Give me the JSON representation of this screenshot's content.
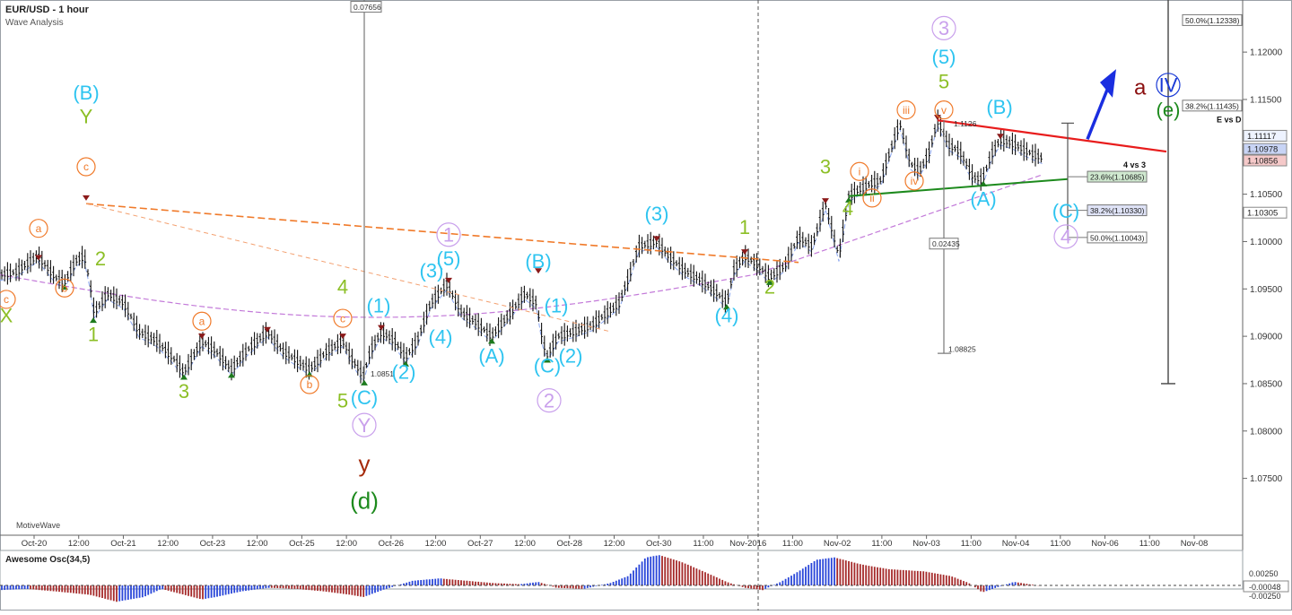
{
  "chart_data": {
    "type": "line",
    "title": "EUR/USD - 1 hour",
    "subtitle": "Wave Analysis",
    "brand": "MotiveWave",
    "ylim": [
      1.069,
      1.1255
    ],
    "y_ticks": [
      1.075,
      1.08,
      1.085,
      1.09,
      1.095,
      1.1,
      1.105,
      1.11,
      1.115,
      1.12
    ],
    "y_tick_labels": [
      "1.07500",
      "1.08000",
      "1.08500",
      "1.09000",
      "1.09500",
      "1.10000",
      "1.10500",
      "1.11000",
      "1.11500",
      "1.12000"
    ],
    "x_tick_labels": [
      "Oct-20",
      "12:00",
      "Oct-21",
      "12:00",
      "Oct-23",
      "12:00",
      "Oct-25",
      "12:00",
      "Oct-26",
      "12:00",
      "Oct-27",
      "12:00",
      "Oct-28",
      "12:00",
      "Oct-30",
      "11:00",
      "Nov-2016",
      "11:00",
      "Nov-02",
      "11:00",
      "Nov-03",
      "11:00",
      "Nov-04",
      "11:00",
      "Nov-06",
      "11:00",
      "Nov-08"
    ],
    "price_path": [
      [
        0,
        1.0965
      ],
      [
        18,
        1.0968
      ],
      [
        42,
        1.0985
      ],
      [
        62,
        1.0962
      ],
      [
        72,
        1.0957
      ],
      [
        85,
        1.098
      ],
      [
        94,
        1.0985
      ],
      [
        100,
        1.0958
      ],
      [
        105,
        1.0925
      ],
      [
        120,
        1.0945
      ],
      [
        138,
        1.0935
      ],
      [
        155,
        1.0905
      ],
      [
        175,
        1.0895
      ],
      [
        195,
        1.0875
      ],
      [
        205,
        1.0862
      ],
      [
        213,
        1.0875
      ],
      [
        225,
        1.0895
      ],
      [
        240,
        1.0885
      ],
      [
        258,
        1.0865
      ],
      [
        275,
        1.0885
      ],
      [
        298,
        1.0905
      ],
      [
        315,
        1.0885
      ],
      [
        330,
        1.0875
      ],
      [
        345,
        1.0865
      ],
      [
        365,
        1.0885
      ],
      [
        382,
        1.0895
      ],
      [
        393,
        1.0875
      ],
      [
        405,
        1.0858
      ],
      [
        413,
        1.0885
      ],
      [
        425,
        1.0905
      ],
      [
        440,
        1.0895
      ],
      [
        452,
        1.0878
      ],
      [
        465,
        1.0895
      ],
      [
        480,
        1.0935
      ],
      [
        498,
        1.0955
      ],
      [
        515,
        1.0925
      ],
      [
        530,
        1.0915
      ],
      [
        548,
        1.09
      ],
      [
        565,
        1.092
      ],
      [
        585,
        1.0945
      ],
      [
        598,
        1.0935
      ],
      [
        605,
        1.0895
      ],
      [
        610,
        1.088
      ],
      [
        622,
        1.09
      ],
      [
        640,
        1.0905
      ],
      [
        660,
        1.0912
      ],
      [
        690,
        1.0935
      ],
      [
        700,
        1.096
      ],
      [
        712,
        1.0995
      ],
      [
        732,
        1.1
      ],
      [
        745,
        1.0985
      ],
      [
        762,
        1.097
      ],
      [
        780,
        1.096
      ],
      [
        800,
        1.0945
      ],
      [
        810,
        1.0935
      ],
      [
        818,
        1.097
      ],
      [
        830,
        1.0985
      ],
      [
        845,
        1.0975
      ],
      [
        858,
        1.0962
      ],
      [
        875,
        1.0975
      ],
      [
        890,
        1.1005
      ],
      [
        905,
        1.0995
      ],
      [
        920,
        1.104
      ],
      [
        935,
        1.0985
      ],
      [
        946,
        1.1048
      ],
      [
        958,
        1.1055
      ],
      [
        968,
        1.106
      ],
      [
        982,
        1.1065
      ],
      [
        992,
        1.1095
      ],
      [
        1003,
        1.1125
      ],
      [
        1015,
        1.1082
      ],
      [
        1025,
        1.1075
      ],
      [
        1035,
        1.1092
      ],
      [
        1045,
        1.1128
      ],
      [
        1058,
        1.1102
      ],
      [
        1070,
        1.1095
      ],
      [
        1085,
        1.1068
      ],
      [
        1095,
        1.1065
      ],
      [
        1105,
        1.1092
      ],
      [
        1115,
        1.1108
      ],
      [
        1130,
        1.1103
      ],
      [
        1145,
        1.1095
      ],
      [
        1162,
        1.1088
      ]
    ],
    "indicator_labels": [
      "1.10685",
      "1.10330",
      "1.10043",
      "1.11435",
      "1.12338"
    ],
    "boxes": [
      "0.07656",
      "0.02435",
      "1.08825",
      "1.0851",
      "1.1126"
    ],
    "fib_labels": [
      "23.6%(1.10685)",
      "38.2%(1.10330)",
      "50.0%(1.10043)",
      "38.2%(1.11435)",
      "50.0%(1.12338)"
    ],
    "right_badges": [
      "1.11117",
      "1.10978",
      "1.10856",
      "1.10305"
    ],
    "notes": [
      "4 vs 3",
      "E vs D"
    ],
    "big_letters": [
      "a"
    ],
    "wave_labels": [
      {
        "t": "(B)",
        "x": 96,
        "y": 1.115,
        "c": "#2ec4f0"
      },
      {
        "t": "Y",
        "x": 96,
        "y": 1.1125,
        "c": "#8cbf26"
      },
      {
        "t": "c",
        "x": 96,
        "y": 1.1075,
        "c": "#f07a2a",
        "circle": true
      },
      {
        "t": "a",
        "x": 43,
        "y": 1.101,
        "c": "#f07a2a",
        "circle": true
      },
      {
        "t": "b",
        "x": 72,
        "y": 1.0947,
        "c": "#f07a2a",
        "circle": true
      },
      {
        "t": "c",
        "x": 7,
        "y": 1.0935,
        "c": "#f07a2a",
        "circle": true
      },
      {
        "t": "X",
        "x": 7,
        "y": 1.0915,
        "c": "#8cbf26"
      },
      {
        "t": "2",
        "x": 112,
        "y": 1.0975,
        "c": "#8cbf26"
      },
      {
        "t": "1",
        "x": 104,
        "y": 1.0895,
        "c": "#8cbf26"
      },
      {
        "t": "3",
        "x": 205,
        "y": 1.0835,
        "c": "#8cbf26"
      },
      {
        "t": "a",
        "x": 225,
        "y": 1.0912,
        "c": "#f07a2a",
        "circle": true
      },
      {
        "t": "b",
        "x": 345,
        "y": 1.0845,
        "c": "#f07a2a",
        "circle": true
      },
      {
        "t": "c",
        "x": 382,
        "y": 1.0915,
        "c": "#f07a2a",
        "circle": true
      },
      {
        "t": "4",
        "x": 382,
        "y": 1.0945,
        "c": "#8cbf26"
      },
      {
        "t": "5",
        "x": 382,
        "y": 1.0825,
        "c": "#8cbf26"
      },
      {
        "t": "(C)",
        "x": 406,
        "y": 1.0828,
        "c": "#2ec4f0"
      },
      {
        "t": "Y",
        "x": 406,
        "y": 1.0799,
        "c": "#c9a0ec",
        "circle": true
      },
      {
        "t": "y",
        "x": 406,
        "y": 1.0757,
        "c": "#a52a0a"
      },
      {
        "t": "(d)",
        "x": 406,
        "y": 1.0718,
        "c": "#1d8a1d"
      },
      {
        "t": "(1)",
        "x": 422,
        "y": 1.0925,
        "c": "#2ec4f0"
      },
      {
        "t": "(2)",
        "x": 450,
        "y": 1.0855,
        "c": "#2ec4f0"
      },
      {
        "t": "(3)",
        "x": 481,
        "y": 1.0962,
        "c": "#2ec4f0"
      },
      {
        "t": "(4)",
        "x": 491,
        "y": 1.0892,
        "c": "#2ec4f0"
      },
      {
        "t": "(5)",
        "x": 500,
        "y": 1.0975,
        "c": "#2ec4f0"
      },
      {
        "t": "1",
        "x": 500,
        "y": 1.1,
        "c": "#c9a0ec",
        "circle": true
      },
      {
        "t": "(A)",
        "x": 548,
        "y": 1.0872,
        "c": "#2ec4f0"
      },
      {
        "t": "(B)",
        "x": 600,
        "y": 1.0972,
        "c": "#2ec4f0"
      },
      {
        "t": "(1)",
        "x": 620,
        "y": 1.0925,
        "c": "#2ec4f0"
      },
      {
        "t": "(C)",
        "x": 610,
        "y": 1.0862,
        "c": "#2ec4f0"
      },
      {
        "t": "(2)",
        "x": 636,
        "y": 1.0872,
        "c": "#2ec4f0"
      },
      {
        "t": "2",
        "x": 612,
        "y": 1.0825,
        "c": "#c9a0ec",
        "circle": true
      },
      {
        "t": "(3)",
        "x": 732,
        "y": 1.1022,
        "c": "#2ec4f0"
      },
      {
        "t": "1",
        "x": 830,
        "y": 1.1008,
        "c": "#8cbf26"
      },
      {
        "t": "(4)",
        "x": 810,
        "y": 1.0915,
        "c": "#2ec4f0"
      },
      {
        "t": "2",
        "x": 858,
        "y": 1.0945,
        "c": "#8cbf26"
      },
      {
        "t": "3",
        "x": 920,
        "y": 1.1072,
        "c": "#8cbf26"
      },
      {
        "t": "i",
        "x": 958,
        "y": 1.107,
        "c": "#f07a2a",
        "circle": true
      },
      {
        "t": "ii",
        "x": 972,
        "y": 1.1042,
        "c": "#f07a2a",
        "circle": true
      },
      {
        "t": "4",
        "x": 945,
        "y": 1.1028,
        "c": "#8cbf26"
      },
      {
        "t": "iii",
        "x": 1010,
        "y": 1.1135,
        "c": "#f07a2a",
        "circle": true
      },
      {
        "t": "iv",
        "x": 1019,
        "y": 1.106,
        "c": "#f07a2a",
        "circle": true
      },
      {
        "t": "v",
        "x": 1052,
        "y": 1.1135,
        "c": "#f07a2a",
        "circle": true
      },
      {
        "t": "5",
        "x": 1052,
        "y": 1.1162,
        "c": "#8cbf26"
      },
      {
        "t": "(5)",
        "x": 1052,
        "y": 1.1188,
        "c": "#2ec4f0"
      },
      {
        "t": "3",
        "x": 1052,
        "y": 1.1218,
        "c": "#c9a0ec",
        "circle": true
      },
      {
        "t": "(B)",
        "x": 1114,
        "y": 1.1135,
        "c": "#2ec4f0"
      },
      {
        "t": "(A)",
        "x": 1096,
        "y": 1.1038,
        "c": "#2ec4f0"
      },
      {
        "t": "(C)",
        "x": 1188,
        "y": 1.1025,
        "c": "#2ec4f0"
      },
      {
        "t": "4",
        "x": 1188,
        "y": 1.0998,
        "c": "#c9a0ec",
        "circle": true
      },
      {
        "t": "IV",
        "x": 1302,
        "y": 1.1158,
        "c": "#1a3ad6",
        "circle": true
      },
      {
        "t": "(e)",
        "x": 1302,
        "y": 1.1132,
        "c": "#1d8a1d"
      }
    ],
    "osc_title": "Awesome Osc(34,5)",
    "osc_ticks": [
      "0.00250",
      "-0.00048",
      "-0.00250"
    ],
    "oscillator": [
      [
        0,
        -4
      ],
      [
        30,
        -3
      ],
      [
        60,
        -5
      ],
      [
        100,
        -8
      ],
      [
        130,
        -14
      ],
      [
        160,
        -10
      ],
      [
        180,
        -3
      ],
      [
        200,
        -7
      ],
      [
        225,
        -12
      ],
      [
        240,
        -10
      ],
      [
        270,
        -5
      ],
      [
        300,
        -2
      ],
      [
        330,
        -3
      ],
      [
        360,
        -5
      ],
      [
        390,
        -8
      ],
      [
        405,
        -10
      ],
      [
        430,
        -3
      ],
      [
        460,
        4
      ],
      [
        490,
        6
      ],
      [
        520,
        4
      ],
      [
        550,
        2
      ],
      [
        580,
        1
      ],
      [
        600,
        3
      ],
      [
        620,
        -2
      ],
      [
        650,
        -3
      ],
      [
        680,
        2
      ],
      [
        700,
        8
      ],
      [
        720,
        24
      ],
      [
        735,
        26
      ],
      [
        760,
        20
      ],
      [
        790,
        10
      ],
      [
        810,
        3
      ],
      [
        830,
        -2
      ],
      [
        850,
        -4
      ],
      [
        870,
        3
      ],
      [
        890,
        12
      ],
      [
        910,
        22
      ],
      [
        930,
        24
      ],
      [
        960,
        18
      ],
      [
        990,
        14
      ],
      [
        1030,
        12
      ],
      [
        1060,
        8
      ],
      [
        1080,
        2
      ],
      [
        1095,
        -6
      ],
      [
        1110,
        -2
      ],
      [
        1130,
        3
      ],
      [
        1160,
        -0.5
      ]
    ]
  }
}
